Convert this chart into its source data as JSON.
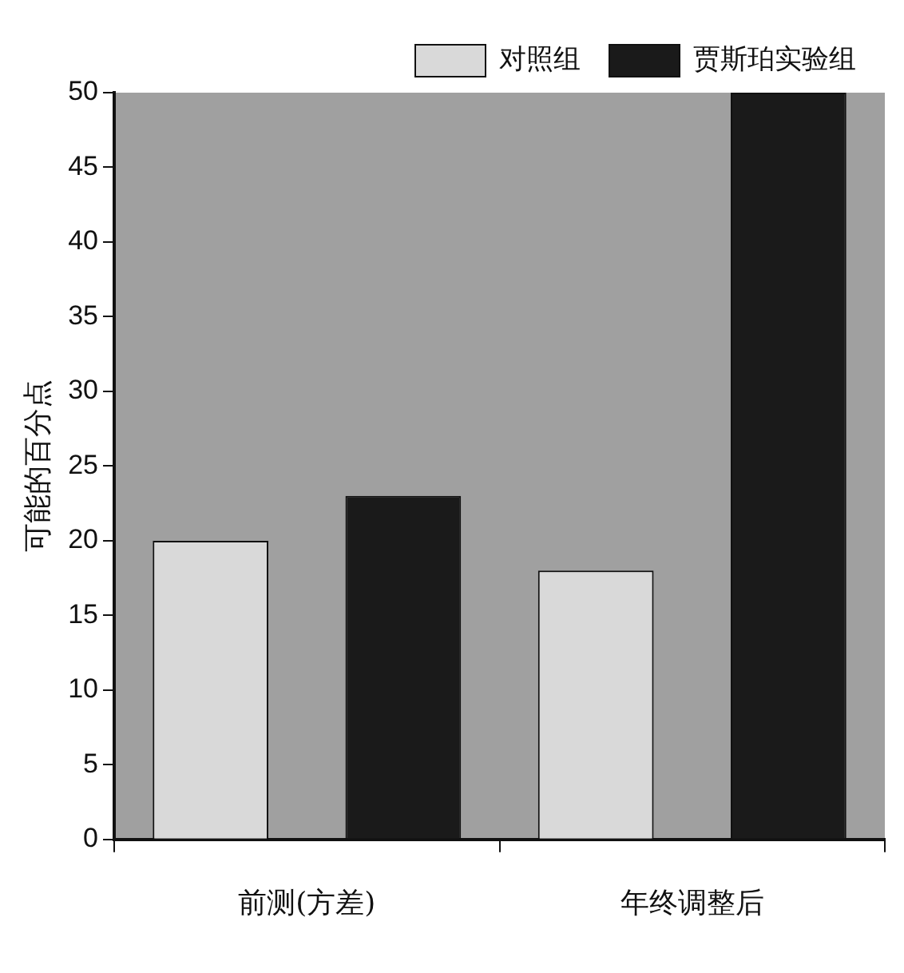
{
  "chart_data": {
    "type": "bar",
    "categories": [
      "前测(方差)",
      "年终调整后"
    ],
    "ylabel": "可能的百分点",
    "series": [
      {
        "name": "对照组",
        "color": "#d9d9d9",
        "values": [
          20,
          18
        ]
      },
      {
        "name": "贾斯珀实验组",
        "color": "#1a1a1a",
        "values": [
          23,
          50
        ]
      }
    ],
    "ylim": [
      0,
      50
    ],
    "yticks": [
      0,
      5,
      10,
      15,
      20,
      25,
      30,
      35,
      40,
      45,
      50
    ],
    "grid": false,
    "legend": "top right"
  }
}
